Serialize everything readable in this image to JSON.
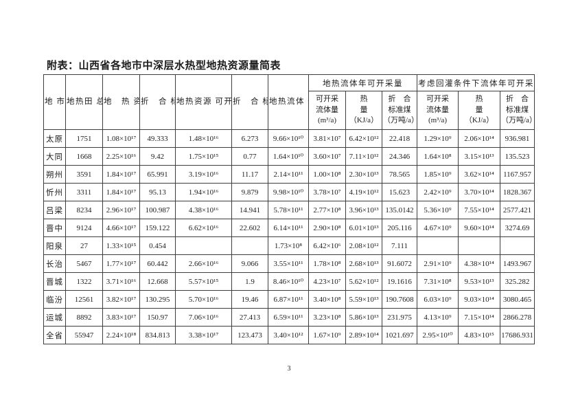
{
  "document": {
    "title": "附表：山西省各地市中深层水热型地热资源量简表",
    "page_number": "3"
  },
  "table": {
    "corner_header": "地\n市",
    "column_headers": [
      "地热田\n总面积\n（km²）",
      "地　热\n资源量\n（KJ）",
      "折　合\n标准煤\n（亿吨）",
      "地热资源\n可开采量\n（KJ）",
      "折　合\n标准煤\n（亿吨）",
      "地热流体\n储 存 量\n(m³)"
    ],
    "group_headers": [
      "地热流体年可开采量",
      "考虑回灌条件下流体年可开采"
    ],
    "sub_headers": [
      "可开采\n流体量\n(m³/a)",
      "热\n量\n（KJ/a）",
      "折　合\n标准煤\n（万吨/a）",
      "可开采\n流体量\n(m³/a)",
      "热\n量\n（KJ/a）",
      "折　合\n标准煤\n（万吨/a）"
    ],
    "rows": [
      {
        "city": "太原",
        "cells": [
          "1751",
          "1.08×10¹⁷",
          "49.333",
          "1.48×10¹⁶",
          "6.273",
          "9.66×10¹⁰",
          "3.81×10⁷",
          "6.42×10¹²",
          "22.418",
          "1.29×10⁹",
          "2.06×10¹⁴",
          "936.981"
        ]
      },
      {
        "city": "大同",
        "cells": [
          "1668",
          "2.25×10¹⁶",
          "9.42",
          "1.75×10¹⁵",
          "0.77",
          "1.64×10¹⁰",
          "3.60×10⁷",
          "7.11×10¹²",
          "24.346",
          "1.64×10⁸",
          "3.15×10¹³",
          "135.523"
        ]
      },
      {
        "city": "朔州",
        "cells": [
          "3591",
          "1.84×10¹⁷",
          "65.991",
          "3.19×10¹⁶",
          "11.17",
          "2.14×10¹¹",
          "1.00×10⁸",
          "2.30×10¹³",
          "78.565",
          "1.85×10⁹",
          "3.62×10¹⁴",
          "1167.957"
        ]
      },
      {
        "city": "忻州",
        "cells": [
          "3311",
          "1.84×10¹⁷",
          "95.13",
          "1.94×10¹⁶",
          "9.879",
          "9.98×10¹⁰",
          "3.78×10⁷",
          "4.19×10¹²",
          "15.623",
          "2.42×10⁹",
          "3.70×10¹⁴",
          "1828.367"
        ]
      },
      {
        "city": "吕梁",
        "cells": [
          "8234",
          "2.96×10¹⁷",
          "100.987",
          "4.38×10¹⁶",
          "14.941",
          "5.78×10¹¹",
          "2.77×10⁸",
          "3.96×10¹³",
          "135.0142",
          "5.36×10⁹",
          "7.55×10¹⁴",
          "2577.421"
        ]
      },
      {
        "city": "晋中",
        "cells": [
          "9124",
          "4.66×10¹⁷",
          "159.122",
          "6.62×10¹⁶",
          "22.602",
          "6.14×10¹¹",
          "2.90×10⁸",
          "6.01×10¹³",
          "205.116",
          "4.67×10⁹",
          "9.60×10¹⁴",
          "3274.69"
        ]
      },
      {
        "city": "阳泉",
        "cells": [
          "27",
          "1.33×10¹⁵",
          "0.454",
          "",
          "",
          "1.73×10⁸",
          "6.42×10⁶",
          "2.08×10¹²",
          "7.111",
          "",
          "",
          ""
        ]
      },
      {
        "city": "长治",
        "cells": [
          "5467",
          "1.77×10¹⁷",
          "60.442",
          "2.66×10¹⁶",
          "9.066",
          "3.55×10¹¹",
          "1.78×10⁸",
          "2.68×10¹³",
          "91.6072",
          "2.91×10⁹",
          "4.38×10¹⁴",
          "1493.967"
        ]
      },
      {
        "city": "晋城",
        "cells": [
          "1322",
          "3.71×10¹⁶",
          "12.668",
          "5.57×10¹⁵",
          "1.9",
          "8.46×10¹⁰",
          "4.23×10⁷",
          "5.62×10¹²",
          "19.1616",
          "7.31×10⁸",
          "9.53×10¹³",
          "325.282"
        ]
      },
      {
        "city": "临汾",
        "cells": [
          "12561",
          "3.82×10¹⁷",
          "130.295",
          "5.70×10¹⁶",
          "19.46",
          "6.87×10¹¹",
          "3.40×10⁸",
          "5.59×10¹³",
          "190.7608",
          "6.03×10⁹",
          "9.03×10¹⁴",
          "3080.465"
        ]
      },
      {
        "city": "运城",
        "cells": [
          "8892",
          "3.83×10¹⁷",
          "150.97",
          "7.06×10¹⁶",
          "27.413",
          "6.59×10¹¹",
          "3.23×10⁸",
          "5.86×10¹³",
          "231.975",
          "4.13×10⁹",
          "7.15×10¹⁴",
          "2866.278"
        ]
      },
      {
        "city": "全省",
        "cells": [
          "55947",
          "2.24×10¹⁸",
          "834.813",
          "3.38×10¹⁷",
          "123.473",
          "3.40×10¹²",
          "1.67×10⁹",
          "2.89×10¹⁴",
          "1021.697",
          "2.95×10¹⁰",
          "4.83×10¹⁵",
          "17686.931"
        ]
      }
    ]
  }
}
